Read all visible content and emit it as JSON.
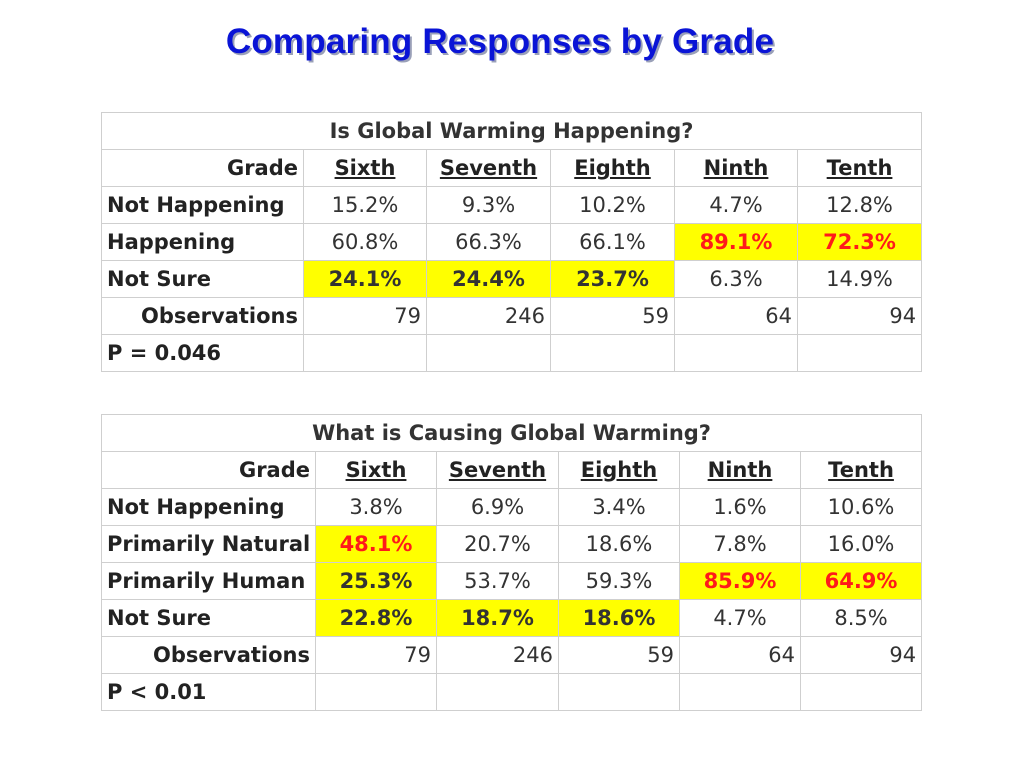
{
  "slide": {
    "title": "Comparing Responses by Grade"
  },
  "colors": {
    "title": "#0a14d6",
    "highlight": "#ffff00",
    "highlight_text": "#ff1a1a"
  },
  "chart_data": [
    {
      "type": "table",
      "title": "Is Global Warming Happening?",
      "header_label": "Grade",
      "columns": [
        "Sixth",
        "Seventh",
        "Eighth",
        "Ninth",
        "Tenth"
      ],
      "rows": [
        {
          "label": "Not Happening",
          "cells": [
            {
              "text": "15.2%",
              "value": 15.2
            },
            {
              "text": "9.3%",
              "value": 9.3
            },
            {
              "text": "10.2%",
              "value": 10.2
            },
            {
              "text": "4.7%",
              "value": 4.7
            },
            {
              "text": "12.8%",
              "value": 12.8
            }
          ]
        },
        {
          "label": "Happening",
          "cells": [
            {
              "text": "60.8%",
              "value": 60.8
            },
            {
              "text": "66.3%",
              "value": 66.3
            },
            {
              "text": "66.1%",
              "value": 66.1
            },
            {
              "text": "89.1%",
              "value": 89.1,
              "highlight": true,
              "red": true
            },
            {
              "text": "72.3%",
              "value": 72.3,
              "highlight": true,
              "red": true
            }
          ]
        },
        {
          "label": "Not Sure",
          "cells": [
            {
              "text": "24.1%",
              "value": 24.1,
              "highlight": true
            },
            {
              "text": "24.4%",
              "value": 24.4,
              "highlight": true
            },
            {
              "text": "23.7%",
              "value": 23.7,
              "highlight": true
            },
            {
              "text": "6.3%",
              "value": 6.3
            },
            {
              "text": "14.9%",
              "value": 14.9
            }
          ]
        }
      ],
      "observations": {
        "label": "Observations",
        "values": [
          "79",
          "246",
          "59",
          "64",
          "94"
        ]
      },
      "p_value": "P = 0.046"
    },
    {
      "type": "table",
      "title": "What is Causing Global Warming?",
      "header_label": "Grade",
      "columns": [
        "Sixth",
        "Seventh",
        "Eighth",
        "Ninth",
        "Tenth"
      ],
      "rows": [
        {
          "label": "Not Happening",
          "cells": [
            {
              "text": "3.8%",
              "value": 3.8
            },
            {
              "text": "6.9%",
              "value": 6.9
            },
            {
              "text": "3.4%",
              "value": 3.4
            },
            {
              "text": "1.6%",
              "value": 1.6
            },
            {
              "text": "10.6%",
              "value": 10.6
            }
          ]
        },
        {
          "label": "Primarily Natural",
          "cells": [
            {
              "text": "48.1%",
              "value": 48.1,
              "highlight": true,
              "red": true
            },
            {
              "text": "20.7%",
              "value": 20.7
            },
            {
              "text": "18.6%",
              "value": 18.6
            },
            {
              "text": "7.8%",
              "value": 7.8
            },
            {
              "text": "16.0%",
              "value": 16.0
            }
          ]
        },
        {
          "label": "Primarily Human",
          "cells": [
            {
              "text": "25.3%",
              "value": 25.3,
              "highlight": true
            },
            {
              "text": "53.7%",
              "value": 53.7
            },
            {
              "text": "59.3%",
              "value": 59.3
            },
            {
              "text": "85.9%",
              "value": 85.9,
              "highlight": true,
              "red": true
            },
            {
              "text": "64.9%",
              "value": 64.9,
              "highlight": true,
              "red": true
            }
          ]
        },
        {
          "label": "Not Sure",
          "cells": [
            {
              "text": "22.8%",
              "value": 22.8,
              "highlight": true
            },
            {
              "text": "18.7%",
              "value": 18.7,
              "highlight": true
            },
            {
              "text": "18.6%",
              "value": 18.6,
              "highlight": true
            },
            {
              "text": "4.7%",
              "value": 4.7
            },
            {
              "text": "8.5%",
              "value": 8.5
            }
          ]
        }
      ],
      "observations": {
        "label": "Observations",
        "values": [
          "79",
          "246",
          "59",
          "64",
          "94"
        ]
      },
      "p_value": "P < 0.01"
    }
  ]
}
